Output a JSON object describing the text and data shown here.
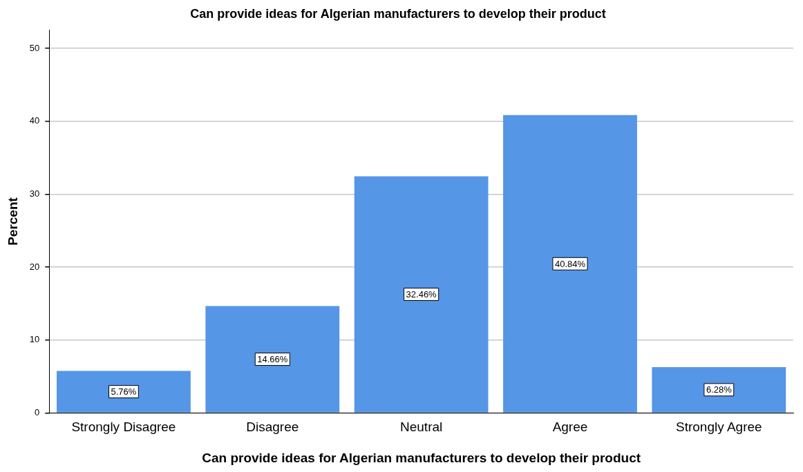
{
  "chart_data": {
    "type": "bar",
    "title": "Can provide ideas for Algerian manufacturers to develop their product",
    "xlabel": "Can provide ideas for Algerian manufacturers to develop their product",
    "ylabel": "Percent",
    "categories": [
      "Strongly Disagree",
      "Disagree",
      "Neutral",
      "Agree",
      "Strongly Agree"
    ],
    "values": [
      5.76,
      14.66,
      32.46,
      40.84,
      6.28
    ],
    "value_labels": [
      "5.76%",
      "14.66%",
      "32.46%",
      "40.84%",
      "6.28%"
    ],
    "color": "#5596e6",
    "ylim": [
      0,
      52.5
    ],
    "yticks": [
      0,
      10,
      20,
      30,
      40,
      50
    ],
    "grid": "y",
    "legend": false
  }
}
